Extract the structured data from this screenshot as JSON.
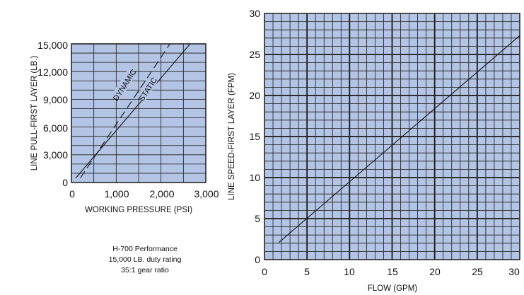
{
  "chart_data": [
    {
      "type": "line",
      "xlabel": "WORKING PRESSURE (PSI)",
      "ylabel": "LINE PULL-FIRST LAYER (LB.)",
      "xlim": [
        0,
        3000
      ],
      "ylim": [
        0,
        15000
      ],
      "x_ticks": [
        "0",
        "1,000",
        "2,000",
        "3,000"
      ],
      "y_ticks": [
        "0",
        "3,000",
        "6,000",
        "9,000",
        "12,000",
        "15,000"
      ],
      "grid": true,
      "background_color": "#b4c4e4",
      "grid_color": "#1a1a1a",
      "series": [
        {
          "name": "DYNAMIC",
          "style": "dashed",
          "x": [
            200,
            2200
          ],
          "y": [
            500,
            15000
          ]
        },
        {
          "name": "STATIC",
          "style": "solid",
          "x": [
            100,
            2650
          ],
          "y": [
            500,
            15000
          ]
        }
      ]
    },
    {
      "type": "line",
      "xlabel": "FLOW (GPM)",
      "ylabel": "LINE SPEED-FIRST LAYER (FPM)",
      "xlim": [
        0,
        30
      ],
      "ylim": [
        0,
        30
      ],
      "x_ticks": [
        "0",
        "5",
        "10",
        "15",
        "20",
        "25",
        "30"
      ],
      "y_ticks": [
        "0",
        "5",
        "10",
        "15",
        "20",
        "25",
        "30"
      ],
      "grid": true,
      "background_color": "#b4c4e4",
      "grid_color": "#1a1a1a",
      "series": [
        {
          "style": "solid",
          "x": [
            1.7,
            30
          ],
          "y": [
            2.1,
            27.3
          ]
        }
      ]
    }
  ],
  "caption": {
    "line1": "H-700 Performance",
    "line2": "15,000 LB. duty rating",
    "line3": "35:1 gear ratio"
  }
}
